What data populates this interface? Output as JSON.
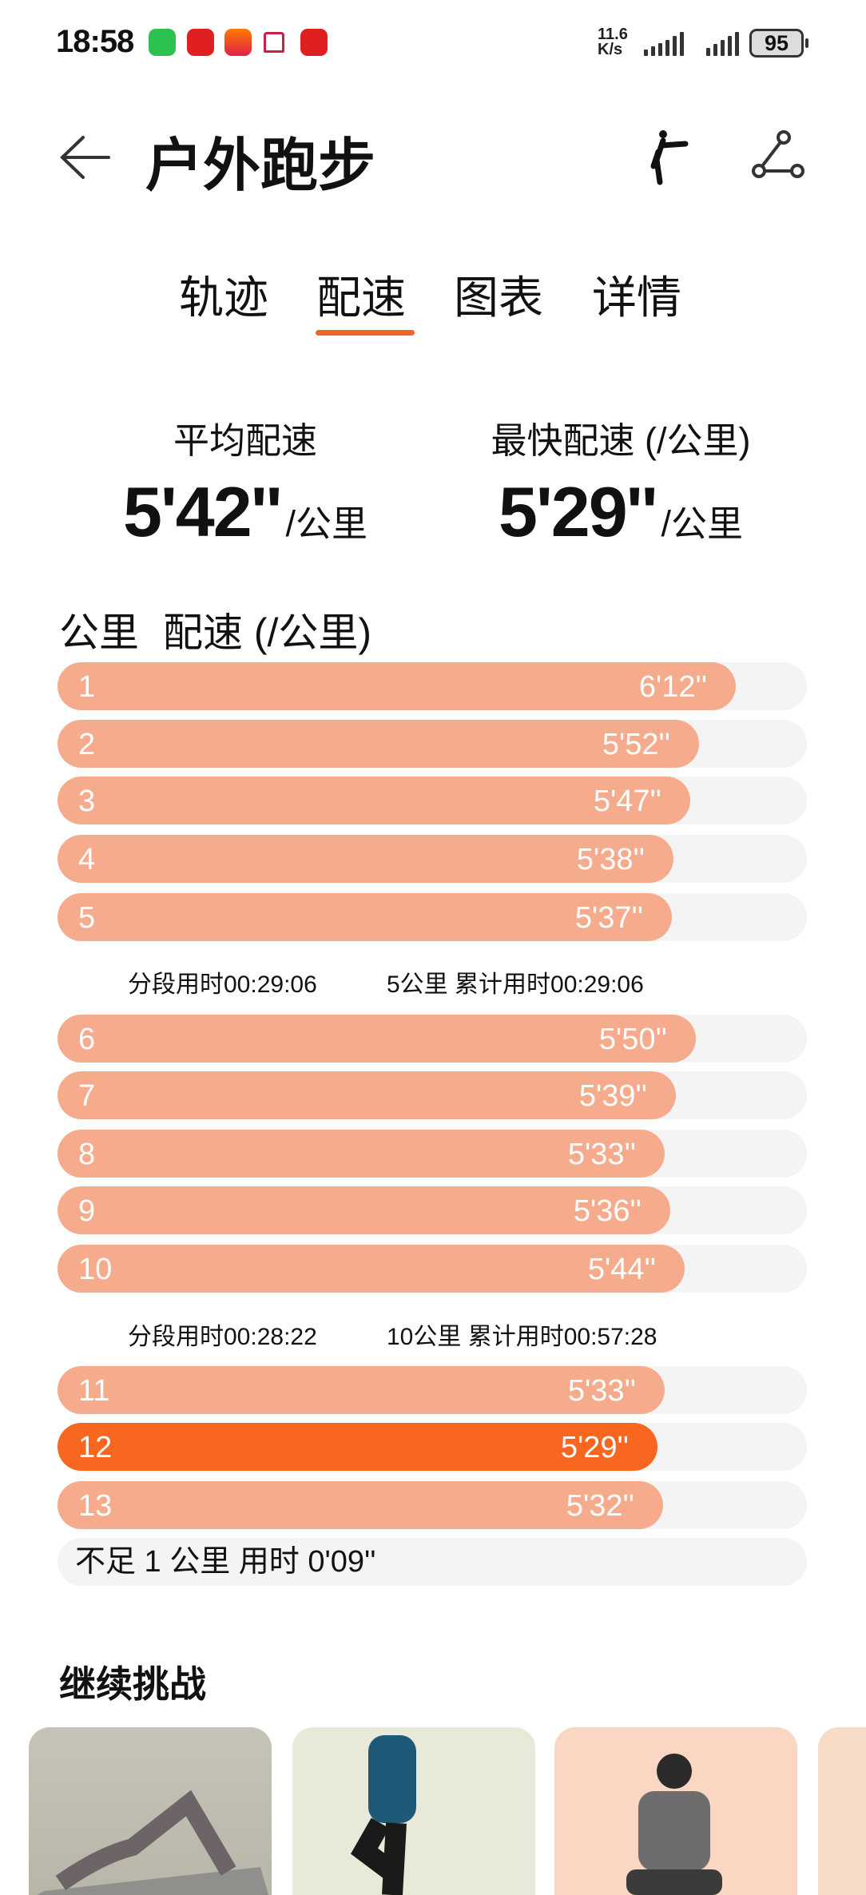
{
  "status_bar": {
    "time": "18:58",
    "net_speed_value": "11.6",
    "net_speed_unit": "K/s",
    "battery": "95",
    "notification_icons": [
      "wechat-icon",
      "tmall-icon",
      "taobao-icon",
      "home-app-icon",
      "tmall-icon"
    ]
  },
  "header": {
    "title": "户外跑步",
    "back_icon": "arrow-left-icon",
    "actions": [
      "running-figure-icon",
      "share-icon"
    ]
  },
  "tabs": [
    {
      "label": "轨迹"
    },
    {
      "label": "配速",
      "active": true
    },
    {
      "label": "图表"
    },
    {
      "label": "详情"
    }
  ],
  "summary": {
    "avg_label": "平均配速",
    "avg_value": "5'42''",
    "avg_unit": "/公里",
    "fast_label": "最快配速 (/公里)",
    "fast_value": "5'29''",
    "fast_unit": "/公里"
  },
  "splits_header": {
    "km": "公里",
    "pace": "配速 (/公里)"
  },
  "colors": {
    "bar": "#f5ab8c",
    "fastest_bar": "#f7671f",
    "track": "#f4f4f4",
    "accent": "#f0652a"
  },
  "splits": [
    {
      "km": "1",
      "pace": "6'12''",
      "seconds": 372
    },
    {
      "km": "2",
      "pace": "5'52''",
      "seconds": 352
    },
    {
      "km": "3",
      "pace": "5'47''",
      "seconds": 347
    },
    {
      "km": "4",
      "pace": "5'38''",
      "seconds": 338
    },
    {
      "km": "5",
      "pace": "5'37''",
      "seconds": 337
    },
    {
      "km": "6",
      "pace": "5'50''",
      "seconds": 350
    },
    {
      "km": "7",
      "pace": "5'39''",
      "seconds": 339
    },
    {
      "km": "8",
      "pace": "5'33''",
      "seconds": 333
    },
    {
      "km": "9",
      "pace": "5'36''",
      "seconds": 336
    },
    {
      "km": "10",
      "pace": "5'44''",
      "seconds": 344
    },
    {
      "km": "11",
      "pace": "5'33''",
      "seconds": 333
    },
    {
      "km": "12",
      "pace": "5'29''",
      "seconds": 329,
      "fastest": true
    },
    {
      "km": "13",
      "pace": "5'32''",
      "seconds": 332
    }
  ],
  "segments": [
    {
      "segment": "分段用时00:29:06",
      "cumulative": "5公里 累计用时00:29:06"
    },
    {
      "segment": "分段用时00:28:22",
      "cumulative": "10公里 累计用时00:57:28"
    }
  ],
  "remainder": "不足 1 公里 用时 0'09''",
  "continue": {
    "title": "继续挑战",
    "cards": [
      {
        "image": "glute-bridge-exercise"
      },
      {
        "image": "high-knee-exercise"
      },
      {
        "image": "squat-exercise"
      },
      {
        "image": "exercise"
      }
    ]
  }
}
